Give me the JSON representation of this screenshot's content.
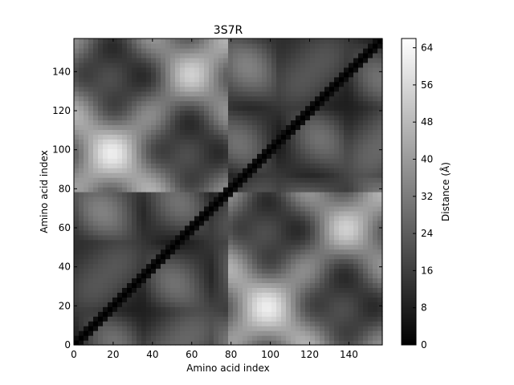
{
  "chart_data": {
    "type": "heatmap",
    "title": "3S7R",
    "xlabel": "Amino acid index",
    "ylabel": "Amino acid index",
    "xlim": [
      0,
      157
    ],
    "ylim": [
      0,
      157
    ],
    "x_ticks": [
      0,
      20,
      40,
      60,
      80,
      100,
      120,
      140
    ],
    "y_ticks": [
      0,
      20,
      40,
      60,
      80,
      100,
      120,
      140
    ],
    "grid": false,
    "domain_boundary": 79,
    "colormap": "gray",
    "colorbar": {
      "label": "Distance (Å)",
      "range": [
        0,
        66
      ],
      "ticks": [
        0,
        8,
        16,
        24,
        32,
        40,
        48,
        56,
        64
      ],
      "placement": "right"
    }
  }
}
